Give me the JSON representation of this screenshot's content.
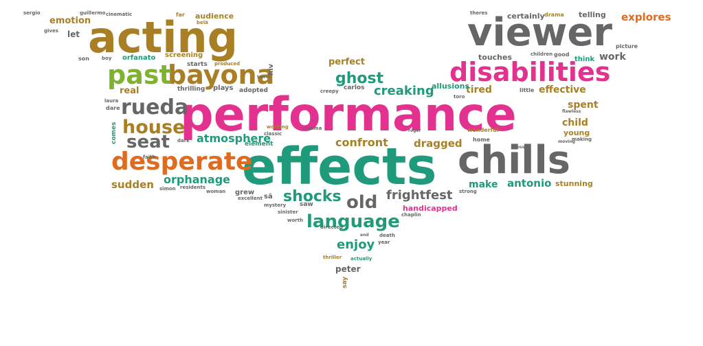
{
  "colors": {
    "background": "#ffffff",
    "pink": "#e2318e",
    "teal": "#1f9a7a",
    "olive": "#a97f25",
    "gray": "#666666",
    "green": "#7fb32e",
    "orange": "#e06a1d",
    "purple": "#8c69b5"
  },
  "words": [
    {
      "text": "performance",
      "color": "pink"
    },
    {
      "text": "effects",
      "color": "teal"
    },
    {
      "text": "viewer",
      "color": "gray"
    },
    {
      "text": "acting",
      "color": "olive"
    },
    {
      "text": "chills",
      "color": "gray"
    },
    {
      "text": "disabilities",
      "color": "pink"
    },
    {
      "text": "bayona",
      "color": "olive"
    },
    {
      "text": "past",
      "color": "green"
    },
    {
      "text": "desperate",
      "color": "orange"
    },
    {
      "text": "rueda",
      "color": "gray"
    },
    {
      "text": "house",
      "color": "olive"
    },
    {
      "text": "language",
      "color": "teal"
    },
    {
      "text": "seat",
      "color": "gray"
    },
    {
      "text": "old",
      "color": "gray"
    },
    {
      "text": "shocks",
      "color": "teal"
    },
    {
      "text": "ghost",
      "color": "teal"
    },
    {
      "text": "frightfest",
      "color": "gray"
    },
    {
      "text": "creaking",
      "color": "teal"
    },
    {
      "text": "enjoy",
      "color": "teal"
    },
    {
      "text": "confront",
      "color": "olive"
    },
    {
      "text": "atmosphere",
      "color": "teal"
    },
    {
      "text": "orphanage",
      "color": "teal"
    },
    {
      "text": "dragged",
      "color": "olive"
    },
    {
      "text": "explores",
      "color": "orange"
    },
    {
      "text": "antonio",
      "color": "teal"
    },
    {
      "text": "sudden",
      "color": "olive"
    },
    {
      "text": "effective",
      "color": "olive"
    },
    {
      "text": "spent",
      "color": "olive"
    },
    {
      "text": "child",
      "color": "olive"
    },
    {
      "text": "work",
      "color": "gray"
    },
    {
      "text": "make",
      "color": "teal"
    },
    {
      "text": "tired",
      "color": "olive"
    },
    {
      "text": "emotion",
      "color": "olive"
    },
    {
      "text": "real",
      "color": "olive"
    },
    {
      "text": "perfect",
      "color": "olive"
    },
    {
      "text": "peter",
      "color": "gray"
    },
    {
      "text": "telling",
      "color": "gray"
    },
    {
      "text": "certainly",
      "color": "gray"
    },
    {
      "text": "handicapped",
      "color": "pink"
    },
    {
      "text": "stunning",
      "color": "olive"
    },
    {
      "text": "young",
      "color": "olive"
    },
    {
      "text": "touches",
      "color": "gray"
    },
    {
      "text": "allusions",
      "color": "teal"
    },
    {
      "text": "audience",
      "color": "olive"
    },
    {
      "text": "screening",
      "color": "olive"
    },
    {
      "text": "orfanato",
      "color": "teal"
    },
    {
      "text": "starts",
      "color": "gray"
    },
    {
      "text": "carlos",
      "color": "gray"
    },
    {
      "text": "let",
      "color": "gray"
    },
    {
      "text": "hiv",
      "color": "gray"
    },
    {
      "text": "plays",
      "color": "gray"
    },
    {
      "text": "adopted",
      "color": "gray"
    },
    {
      "text": "thrilling",
      "color": "gray"
    },
    {
      "text": "element",
      "color": "teal"
    },
    {
      "text": "grew",
      "color": "gray"
    },
    {
      "text": "saw",
      "color": "gray"
    },
    {
      "text": "say",
      "color": "olive"
    },
    {
      "text": "sã",
      "color": "gray"
    },
    {
      "text": "think",
      "color": "teal"
    },
    {
      "text": "wonderful",
      "color": "olive"
    },
    {
      "text": "drama",
      "color": "olive"
    },
    {
      "text": "cinematic",
      "color": "gray"
    },
    {
      "text": "guillermo",
      "color": "gray"
    },
    {
      "text": "sergio",
      "color": "gray"
    },
    {
      "text": "far",
      "color": "olive"
    },
    {
      "text": "belã",
      "color": "olive"
    },
    {
      "text": "son",
      "color": "gray"
    },
    {
      "text": "boy",
      "color": "gray"
    },
    {
      "text": "dare",
      "color": "gray"
    },
    {
      "text": "laura",
      "color": "gray"
    },
    {
      "text": "comes",
      "color": "teal"
    },
    {
      "text": "faith",
      "color": "gray"
    },
    {
      "text": "produced",
      "color": "olive"
    },
    {
      "text": "terror",
      "color": "gray"
    },
    {
      "text": "classic",
      "color": "gray"
    },
    {
      "text": "working",
      "color": "olive"
    },
    {
      "text": "cinema",
      "color": "gray"
    },
    {
      "text": "excellent",
      "color": "gray"
    },
    {
      "text": "mystery",
      "color": "gray"
    },
    {
      "text": "woman",
      "color": "gray"
    },
    {
      "text": "residents",
      "color": "gray"
    },
    {
      "text": "simon",
      "color": "gray"
    },
    {
      "text": "sinister",
      "color": "gray"
    },
    {
      "text": "directed",
      "color": "gray"
    },
    {
      "text": "worth",
      "color": "gray"
    },
    {
      "text": "death",
      "color": "gray"
    },
    {
      "text": "year",
      "color": "gray"
    },
    {
      "text": "thriller",
      "color": "olive"
    },
    {
      "text": "actually",
      "color": "teal"
    },
    {
      "text": "end",
      "color": "gray"
    },
    {
      "text": "chaplin",
      "color": "gray"
    },
    {
      "text": "strong",
      "color": "gray"
    },
    {
      "text": "roger",
      "color": "gray"
    },
    {
      "text": "toro",
      "color": "gray"
    },
    {
      "text": "good",
      "color": "gray"
    },
    {
      "text": "picture",
      "color": "gray"
    },
    {
      "text": "little",
      "color": "gray"
    },
    {
      "text": "home",
      "color": "gray"
    },
    {
      "text": "gives",
      "color": "gray"
    },
    {
      "text": "dark",
      "color": "gray"
    },
    {
      "text": "creepy",
      "color": "gray"
    },
    {
      "text": "children",
      "color": "gray"
    },
    {
      "text": "theres",
      "color": "gray"
    },
    {
      "text": "making",
      "color": "gray"
    },
    {
      "text": "loss",
      "color": "gray"
    },
    {
      "text": "moving",
      "color": "gray"
    },
    {
      "text": "flawless",
      "color": "gray"
    }
  ]
}
